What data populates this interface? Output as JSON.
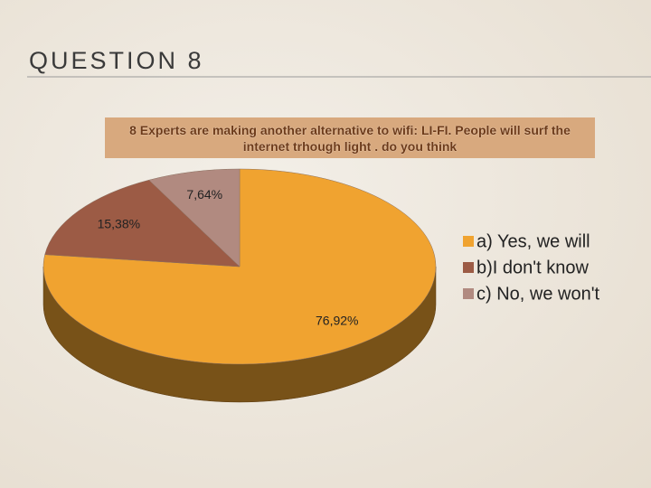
{
  "slide": {
    "title": "QUESTION 8"
  },
  "chart_data": {
    "type": "pie3d",
    "title": "8 Experts are making another alternative to wifi: LI-FI. People will surf  the internet trhough light . do you think",
    "categories": [
      "a) Yes, we will",
      "b)I don't know",
      "c) No, we won't"
    ],
    "values": [
      76.92,
      15.38,
      7.64
    ],
    "value_labels": [
      "76,92%",
      "15,38%",
      "7,64%"
    ],
    "colors": [
      "#f0a330",
      "#9c5b45",
      "#b18a80"
    ],
    "legend": "right"
  }
}
